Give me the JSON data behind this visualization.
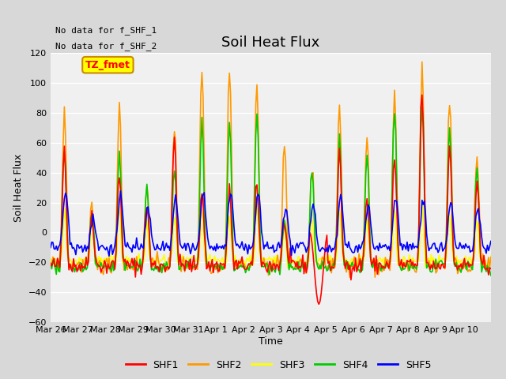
{
  "title": "Soil Heat Flux",
  "ylabel": "Soil Heat Flux",
  "xlabel": "Time",
  "ylim": [
    -60,
    120
  ],
  "yticks": [
    -60,
    -40,
    -20,
    0,
    20,
    40,
    60,
    80,
    100,
    120
  ],
  "n_days": 16,
  "xtick_labels": [
    "Mar 26",
    "Mar 27",
    "Mar 28",
    "Mar 29",
    "Mar 30",
    "Mar 31",
    "Apr 1",
    "Apr 2",
    "Apr 3",
    "Apr 4",
    "Apr 5",
    "Apr 6",
    "Apr 7",
    "Apr 8",
    "Apr 9",
    "Apr 10"
  ],
  "colors": {
    "SHF1": "#ff0000",
    "SHF2": "#ff9900",
    "SHF3": "#ffff00",
    "SHF4": "#00cc00",
    "SHF5": "#0000ff"
  },
  "annotation_text1": "No data for f_SHF_1",
  "annotation_text2": "No data for f_SHF_2",
  "box_label": "TZ_fmet",
  "box_color": "#ffff00",
  "box_border_color": "#cc8800",
  "fig_bg_color": "#d8d8d8",
  "plot_bg_color": "#f0f0f0",
  "title_fontsize": 13,
  "axis_fontsize": 9,
  "tick_fontsize": 8,
  "day_peaks_shf2": [
    80,
    15,
    85,
    33,
    70,
    110,
    110,
    100,
    60,
    42,
    85,
    65,
    93,
    109,
    90,
    50
  ],
  "day_peaks_shf4": [
    53,
    15,
    52,
    29,
    43,
    76,
    72,
    80,
    8,
    41,
    63,
    50,
    83,
    85,
    70,
    40
  ],
  "day_peaks_shf1": [
    57,
    14,
    38,
    19,
    63,
    29,
    27,
    30,
    8,
    5,
    50,
    22,
    51,
    95,
    60,
    30
  ],
  "day_peaks_shf3": [
    15,
    8,
    20,
    5,
    10,
    15,
    12,
    20,
    6,
    10,
    15,
    8,
    15,
    20,
    12,
    8
  ],
  "day_peaks_shf5": [
    28,
    10,
    25,
    15,
    20,
    27,
    27,
    26,
    15,
    18,
    24,
    20,
    25,
    22,
    20,
    15
  ],
  "night_base_shf2": -22,
  "night_base_shf4": -23,
  "night_base_shf1": -22,
  "night_base_shf3": -19,
  "night_base_shf5": -10,
  "shf1_dip_day": 9,
  "shf1_dip_val": -48
}
